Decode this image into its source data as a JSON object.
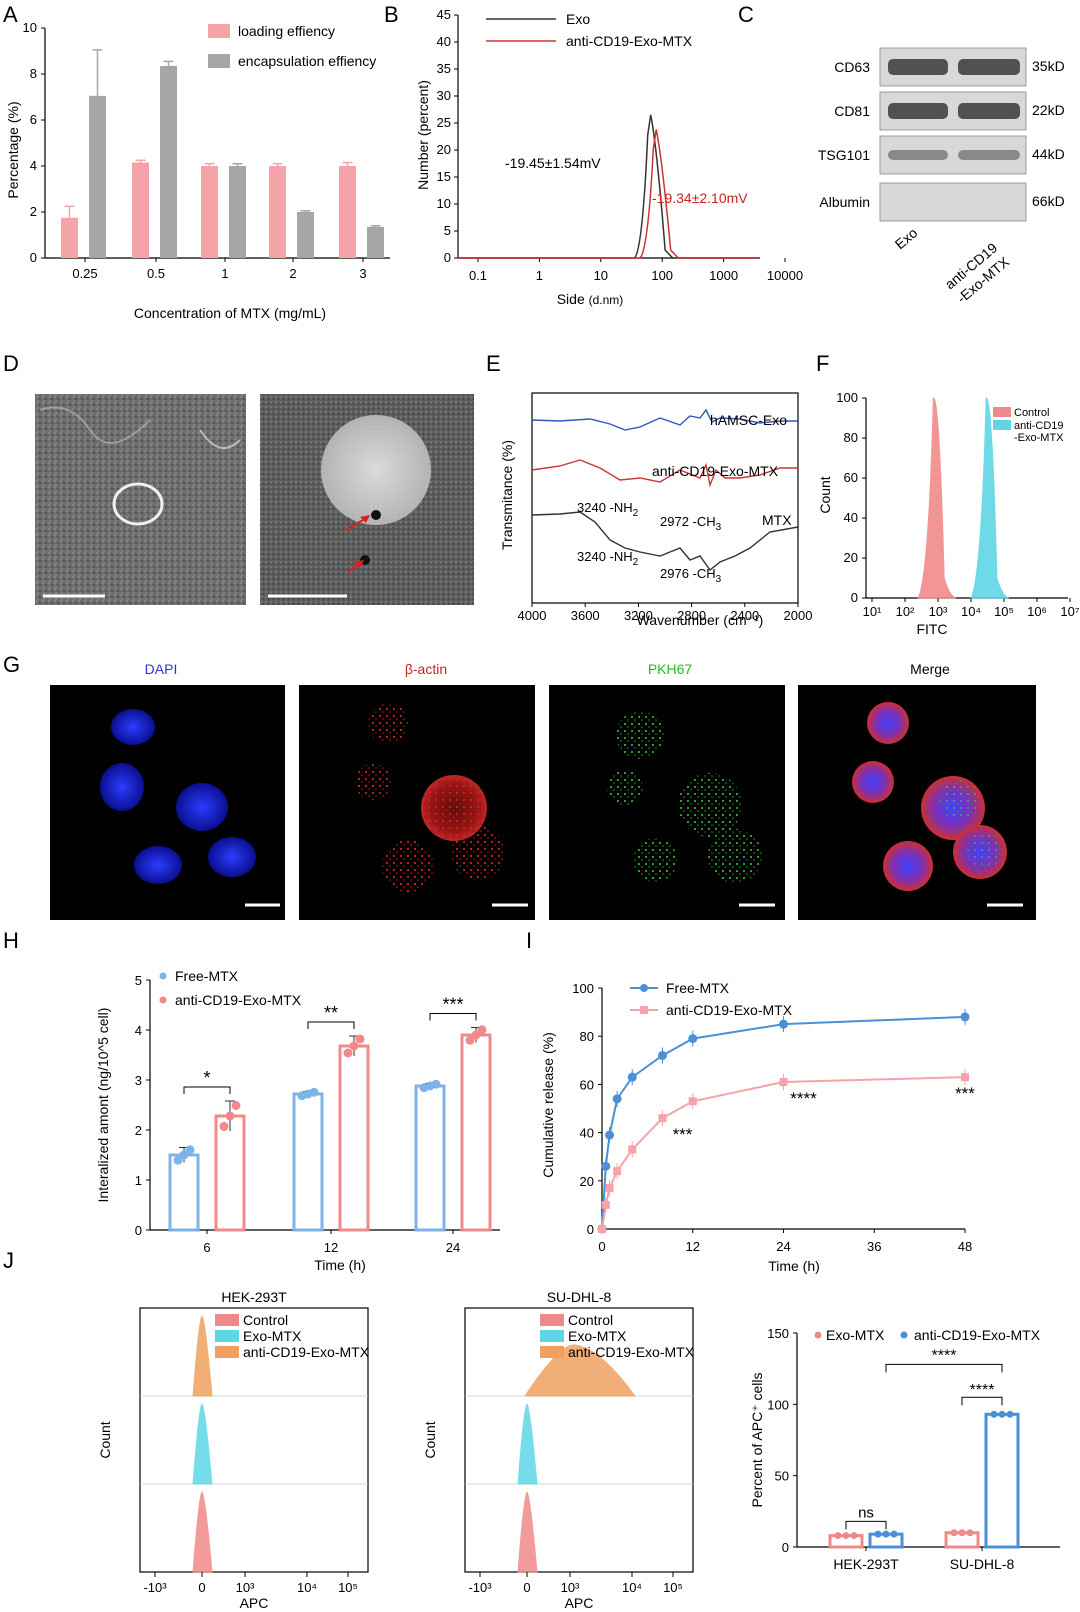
{
  "panel_letters": [
    "A",
    "B",
    "C",
    "D",
    "E",
    "F",
    "G",
    "H",
    "I",
    "J"
  ],
  "colors": {
    "pink": "#f4a3a8",
    "gray": "#a6a6a6",
    "black": "#333333",
    "red": "#cc3333",
    "blue": "#3355bb",
    "cyan": "#5fd6e6",
    "salmon": "#f08a8a",
    "orange": "#f0a060",
    "ltblue": "#7fb3e8",
    "medblue": "#4a90d9",
    "ltpink": "#f5a3a8"
  },
  "chart_data": [
    {
      "panel": "A",
      "type": "bar",
      "categories": [
        "0.25",
        "0.5",
        "1",
        "2",
        "3"
      ],
      "series": [
        {
          "name": "loading effiency",
          "values": [
            1.75,
            4.15,
            4.0,
            4.0,
            4.0
          ],
          "errors": [
            0.5,
            0.1,
            0.1,
            0.1,
            0.15
          ]
        },
        {
          "name": "encapsulation effiency",
          "values": [
            7.05,
            8.35,
            4.0,
            2.0,
            1.35
          ],
          "errors": [
            2.0,
            0.2,
            0.1,
            0.05,
            0.05
          ]
        }
      ],
      "xlabel": "Concentration of MTX (mg/mL)",
      "ylabel": "Percentage (%)",
      "ylim": [
        0,
        10
      ],
      "yticks": [
        "0",
        "2",
        "4",
        "6",
        "8",
        "10"
      ]
    },
    {
      "panel": "B",
      "type": "line",
      "xlabel_main": "Side",
      "xlabel_unit": "(d.nm)",
      "ylabel": "Number (percent)",
      "ylim": [
        0,
        45
      ],
      "xscale": "log",
      "xticks": [
        "0.1",
        "1",
        "10",
        "100",
        "1000",
        "10000"
      ],
      "yticks": [
        "0",
        "5",
        "10",
        "15",
        "20",
        "25",
        "30",
        "35",
        "40",
        "45"
      ],
      "series": [
        {
          "name": "Exo",
          "peak_x": 65,
          "peak_y": 26.5
        },
        {
          "name": "anti-CD19-Exo-MTX",
          "peak_x": 80,
          "peak_y": 23.8
        }
      ],
      "annotations": [
        "-19.45±1.54mV",
        "-19.34±2.10mV"
      ]
    },
    {
      "panel": "C",
      "type": "table",
      "bands": [
        {
          "name": "CD63",
          "size": "35kD"
        },
        {
          "name": "CD81",
          "size": "22kD"
        },
        {
          "name": "TSG101",
          "size": "44kD"
        },
        {
          "name": "Albumin",
          "size": "66kD"
        }
      ],
      "lanes": [
        "Exo",
        "anti-CD19\n-Exo-MTX"
      ]
    },
    {
      "panel": "E",
      "type": "line",
      "xlabel": "Wavenumber (cm⁻¹)",
      "ylabel": "Transmitance (%)",
      "xticks": [
        "4000",
        "3600",
        "3200",
        "2800",
        "2400",
        "2000"
      ],
      "series": [
        {
          "name": "hAMSC-Exo"
        },
        {
          "name": "anti-CD19-Exo-MTX"
        },
        {
          "name": "MTX"
        }
      ],
      "annotations": [
        "3240 -NH",
        "2",
        "2972 -CH",
        "3",
        "3240 -NH",
        "2",
        "2976 -CH",
        "3"
      ]
    },
    {
      "panel": "F",
      "type": "area",
      "xlabel": "FITC",
      "ylabel": "Count",
      "ylim": [
        0,
        100
      ],
      "yticks": [
        "0",
        "20",
        "40",
        "60",
        "80",
        "100"
      ],
      "xticks": [
        "10¹",
        "10²",
        "10³",
        "10⁴",
        "10⁵",
        "10⁶",
        "10⁷"
      ],
      "series": [
        {
          "name": "Control",
          "peak_log10": 2.95
        },
        {
          "name": "anti-CD19\n-Exo-MTX",
          "peak_log10": 4.55
        }
      ]
    },
    {
      "panel": "H",
      "type": "bar",
      "categories": [
        "6",
        "12",
        "24"
      ],
      "xlabel": "Time (h)",
      "ylabel": "Interalized amont (ng/10^5 cell)",
      "ylim": [
        0,
        5
      ],
      "yticks": [
        "0",
        "1",
        "2",
        "3",
        "4",
        "5"
      ],
      "series": [
        {
          "name": "Free-MTX",
          "values": [
            1.5,
            2.72,
            2.88
          ],
          "errors": [
            0.15,
            0.05,
            0.05
          ]
        },
        {
          "name": "anti-CD19-Exo-MTX",
          "values": [
            2.28,
            3.68,
            3.9
          ],
          "errors": [
            0.3,
            0.2,
            0.15
          ]
        }
      ],
      "significance": [
        "*",
        "**",
        "***"
      ]
    },
    {
      "panel": "I",
      "type": "line",
      "xlabel": "Time (h)",
      "ylabel": "Cumulative release (%)",
      "ylim": [
        0,
        100
      ],
      "xlim": [
        0,
        48
      ],
      "xticks": [
        "0",
        "12",
        "24",
        "36",
        "48"
      ],
      "yticks": [
        "0",
        "20",
        "40",
        "60",
        "80",
        "100"
      ],
      "x": [
        0,
        0.5,
        1,
        2,
        4,
        8,
        12,
        24,
        48
      ],
      "series": [
        {
          "name": "Free-MTX",
          "values": [
            0,
            26,
            39,
            54,
            63,
            72,
            79,
            85,
            88
          ]
        },
        {
          "name": "anti-CD19-Exo-MTX",
          "values": [
            0,
            10,
            17,
            24,
            33,
            46,
            53,
            61,
            63
          ]
        }
      ],
      "significance": [
        "***",
        "****",
        "***"
      ]
    },
    {
      "panel": "J",
      "type": "area",
      "titles": [
        "HEK-293T",
        "SU-DHL-8"
      ],
      "legend": [
        "Control",
        "Exo-MTX",
        "anti-CD19-Exo-MTX"
      ],
      "xlabel": "APC",
      "ylabel": "Count",
      "xticks": [
        "-10³",
        "0",
        "10³",
        "10⁴",
        "10⁵"
      ]
    },
    {
      "panel": "J-right",
      "type": "bar",
      "categories": [
        "HEK-293T",
        "SU-DHL-8"
      ],
      "ylabel": "Percent of APC⁺ cells",
      "ylim": [
        0,
        150
      ],
      "yticks": [
        "0",
        "50",
        "100",
        "150"
      ],
      "series": [
        {
          "name": "Exo-MTX",
          "values": [
            8,
            10
          ]
        },
        {
          "name": "anti-CD19-Exo-MTX",
          "values": [
            9,
            93
          ]
        }
      ],
      "significance": [
        "ns",
        "****",
        "****"
      ]
    }
  ],
  "panel_D": {
    "scale_bars": 2
  },
  "panel_G": {
    "titles": [
      "DAPI",
      "β-actin",
      "PKH67",
      "Merge"
    ],
    "title_colors": [
      "#3333cc",
      "#cc2222",
      "#22bb22",
      "#000000"
    ]
  }
}
